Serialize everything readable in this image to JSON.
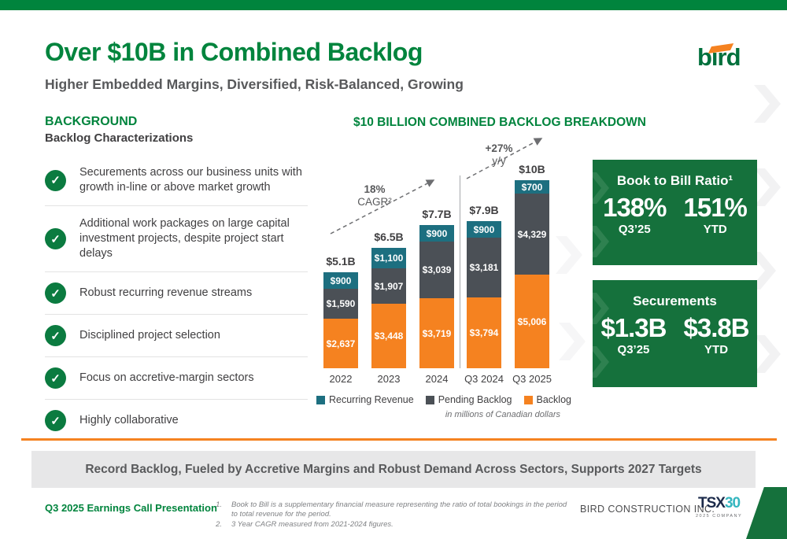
{
  "header": {
    "title": "Over $10B in Combined Backlog",
    "subtitle": "Higher Embedded Margins, Diversified, Risk-Balanced, Growing",
    "logo_text": "bird"
  },
  "background": {
    "heading": "BACKGROUND",
    "subheading": "Backlog Characterizations",
    "items": [
      {
        "text": "Securements across our business units with growth in-line or above market growth"
      },
      {
        "text": "Additional work packages on large capital investment projects, despite project start delays"
      },
      {
        "text": "Robust recurring revenue streams"
      },
      {
        "text": "Disciplined project selection"
      },
      {
        "text": "Focus on accretive-margin sectors"
      },
      {
        "text": "Highly collaborative"
      }
    ]
  },
  "chart_data": {
    "type": "bar",
    "stacked": true,
    "title": "$10 BILLION COMBINED BACKLOG BREAKDOWN",
    "categories": [
      "2022",
      "2023",
      "2024",
      "Q3 2024",
      "Q3 2025"
    ],
    "series": [
      {
        "name": "Backlog",
        "color": "#F58220",
        "values": [
          2637,
          3448,
          3719,
          3794,
          5006
        ]
      },
      {
        "name": "Pending Backlog",
        "color": "#4B5056",
        "values": [
          1590,
          1907,
          3039,
          3181,
          4329
        ]
      },
      {
        "name": "Recurring Revenue",
        "color": "#1D6F80",
        "values": [
          900,
          1100,
          900,
          900,
          700
        ]
      }
    ],
    "totals_labels": [
      "$5.1B",
      "$6.5B",
      "$7.7B",
      "$7.9B",
      "$10B"
    ],
    "annotations": {
      "cagr_value": "18%",
      "cagr_label": "CAGR²",
      "yoy_value": "+27%",
      "yoy_label": "y/y"
    },
    "legend": [
      {
        "label": "Recurring Revenue",
        "color": "#1D6F80"
      },
      {
        "label": "Pending Backlog",
        "color": "#4B5056"
      },
      {
        "label": "Backlog",
        "color": "#F58220"
      }
    ],
    "note": "in millions of Canadian dollars",
    "units": "millions of Canadian dollars",
    "grid": false,
    "legend_position": "bottom"
  },
  "stats_boxes": [
    {
      "heading": "Book to Bill Ratio¹",
      "cols": [
        {
          "value": "138%",
          "label": "Q3’25"
        },
        {
          "value": "151%",
          "label": "YTD"
        }
      ]
    },
    {
      "heading": "Securements",
      "cols": [
        {
          "value": "$1.3B",
          "label": "Q3’25"
        },
        {
          "value": "$3.8B",
          "label": "YTD"
        }
      ]
    }
  ],
  "banner": {
    "text": "Record Backlog, Fueled by Accretive Margins and Robust Demand Across Sectors, Supports 2027 Targets"
  },
  "footer": {
    "presentation": "Q3 2025 Earnings Call Presentation",
    "footnotes": [
      {
        "num": "1.",
        "text": "Book to Bill is a supplementary financial measure representing the ratio of total bookings in the period to total revenue for the period."
      },
      {
        "num": "2.",
        "text": "3 Year CAGR measured from 2021-2024 figures."
      }
    ],
    "company": "BIRD CONSTRUCTION INC.",
    "tsx_logo": {
      "main": "TSX",
      "thirty": "30",
      "sub": "2025 COMPANY"
    },
    "page": "3"
  },
  "colors": {
    "brand_green": "#00843D",
    "box_green": "#15713C",
    "orange": "#F58220",
    "teal": "#1D6F80",
    "dark_gray": "#4B5056"
  }
}
